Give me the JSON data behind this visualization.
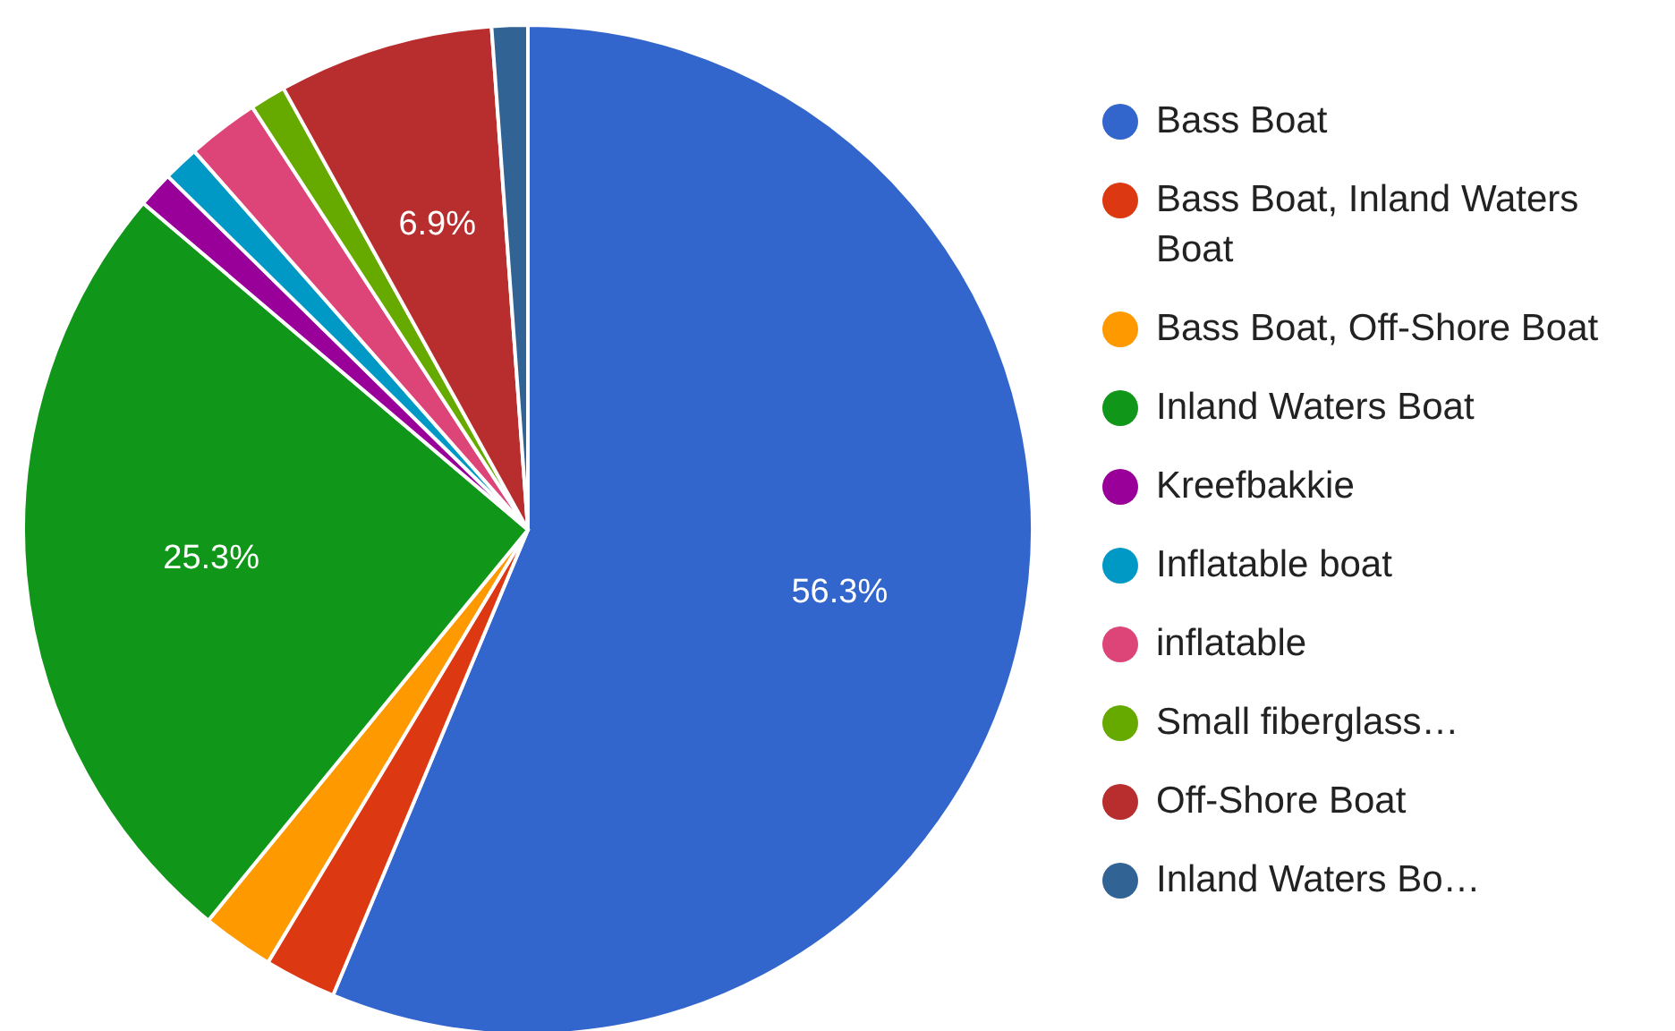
{
  "chart_data": {
    "type": "pie",
    "categories": [
      "Bass Boat",
      "Bass Boat, Inland Waters Boat",
      "Bass Boat, Off-Shore Boat",
      "Inland Waters Boat",
      "Kreefbakkie",
      "Inflatable boat",
      "inflatable",
      "Small fiberglass…",
      "Off-Shore Boat",
      "Inland Waters Bo…"
    ],
    "values": [
      56.32,
      2.3,
      2.3,
      25.29,
      1.15,
      1.15,
      2.3,
      1.15,
      6.9,
      1.15
    ],
    "value_labels": [
      "56.3%",
      null,
      null,
      "25.3%",
      null,
      null,
      null,
      null,
      "6.9%",
      null
    ],
    "colors": [
      "#3366cc",
      "#dc3912",
      "#ff9900",
      "#109618",
      "#990099",
      "#0099c6",
      "#dd4477",
      "#66aa00",
      "#b82e2e",
      "#316395"
    ],
    "legend": "right"
  }
}
